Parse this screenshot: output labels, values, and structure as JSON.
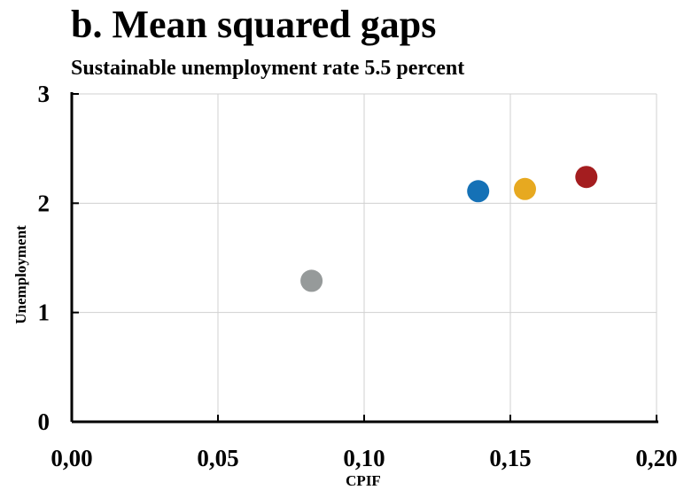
{
  "chart_data": {
    "type": "scatter",
    "title": "b. Mean squared gaps",
    "subtitle": "Sustainable unemployment rate 5.5 percent",
    "xlabel": "CPIF",
    "ylabel": "Unemployment",
    "xlim": [
      0,
      0.2
    ],
    "ylim": [
      0,
      3
    ],
    "x_ticks": [
      "0,00",
      "0,05",
      "0,10",
      "0,15",
      "0,20"
    ],
    "y_ticks": [
      "0",
      "1",
      "2",
      "3"
    ],
    "grid": true,
    "legend": "none",
    "points": [
      {
        "x": 0.082,
        "y": 1.29,
        "color": "#969a9a"
      },
      {
        "x": 0.139,
        "y": 2.11,
        "color": "#1571b6"
      },
      {
        "x": 0.155,
        "y": 2.13,
        "color": "#e7a920"
      },
      {
        "x": 0.176,
        "y": 2.24,
        "color": "#a41d1f"
      }
    ]
  }
}
